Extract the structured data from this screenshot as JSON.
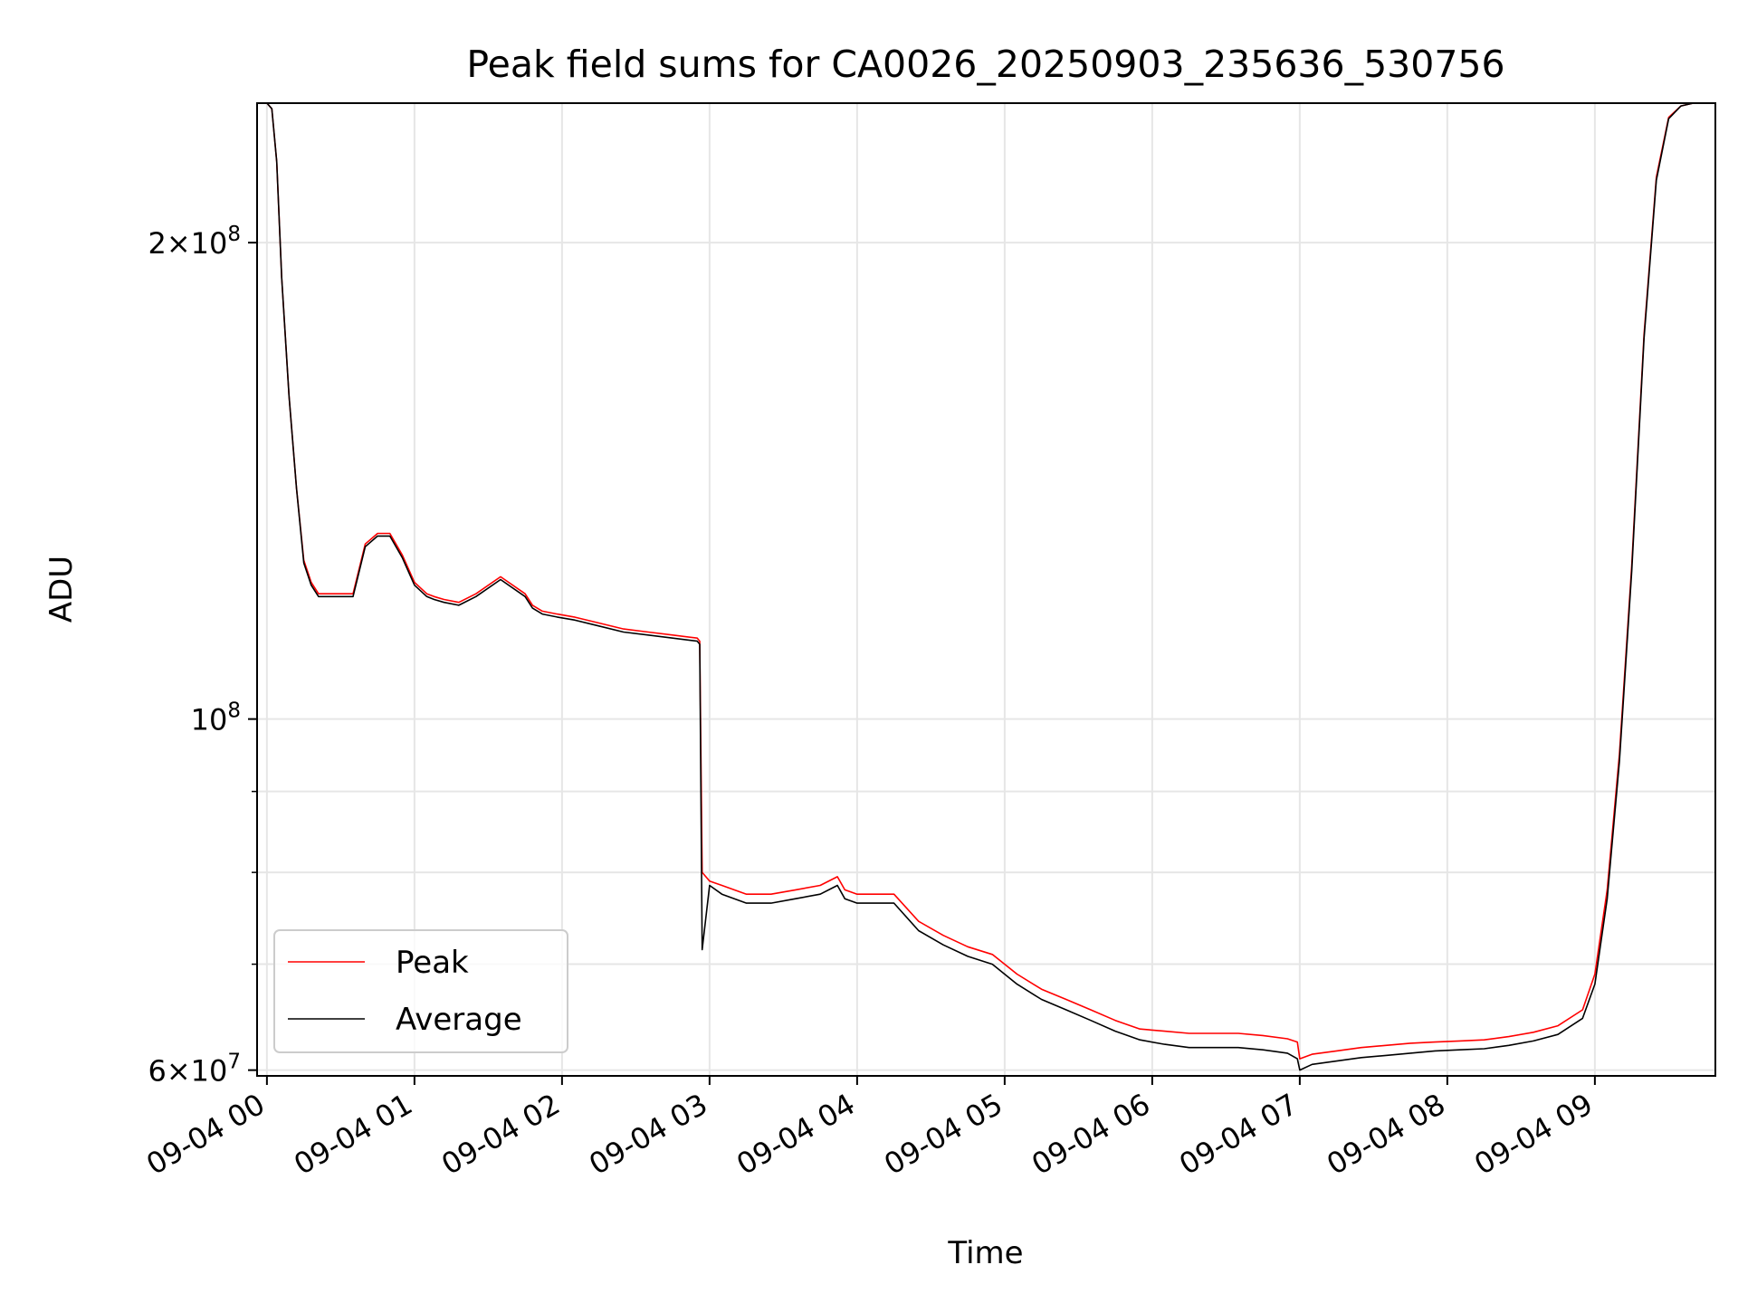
{
  "chart_data": {
    "type": "line",
    "title": "Peak field sums for CA0026_20250903_235636_530756",
    "xlabel": "Time",
    "ylabel": "ADU",
    "yscale": "log",
    "xlim": [
      "09-03 23:56",
      "09-04 09:49"
    ],
    "ylim": [
      59500000,
      245000000
    ],
    "x_ticks": [
      "09-04 00",
      "09-04 01",
      "09-04 02",
      "09-04 03",
      "09-04 04",
      "09-04 05",
      "09-04 06",
      "09-04 07",
      "09-04 08",
      "09-04 09"
    ],
    "y_ticks": [
      {
        "value": 200000000,
        "mantissa": "2",
        "exponent": "8"
      },
      {
        "value": 100000000,
        "mantissa": "",
        "exponent": "8"
      },
      {
        "value": 60000000,
        "mantissa": "6",
        "exponent": "7"
      }
    ],
    "grid": true,
    "legend_position": "lower-left",
    "series": [
      {
        "name": "Peak",
        "color": "#ff0000",
        "x": [
          "09-03 23:56",
          "09-04 00:00",
          "00:02",
          "00:04",
          "00:06",
          "00:09",
          "00:12",
          "00:15",
          "00:18",
          "00:21",
          "00:25",
          "00:30",
          "00:35",
          "00:40",
          "00:45",
          "00:50",
          "00:55",
          "01:00",
          "01:05",
          "01:08",
          "01:12",
          "01:18",
          "01:25",
          "01:35",
          "01:45",
          "01:48",
          "01:52",
          "01:58",
          "02:05",
          "02:15",
          "02:25",
          "02:35",
          "02:45",
          "02:55",
          "02:56",
          "02:57",
          "03:00",
          "03:05",
          "03:15",
          "03:25",
          "03:35",
          "03:45",
          "03:52",
          "03:55",
          "04:00",
          "04:08",
          "04:15",
          "04:25",
          "04:35",
          "04:45",
          "04:55",
          "05:05",
          "05:15",
          "05:25",
          "05:35",
          "05:45",
          "05:55",
          "06:05",
          "06:15",
          "06:25",
          "06:35",
          "06:45",
          "06:55",
          "06:59",
          "07:00",
          "07:05",
          "07:15",
          "07:25",
          "07:35",
          "07:45",
          "07:55",
          "08:05",
          "08:15",
          "08:25",
          "08:35",
          "08:45",
          "08:55",
          "09:00",
          "09:05",
          "09:10",
          "09:15",
          "09:20",
          "09:25",
          "09:30",
          "09:35",
          "09:40",
          "09:45",
          "09:49"
        ],
        "y": [
          245000000,
          245000000,
          243000000,
          225000000,
          190000000,
          160000000,
          140000000,
          126000000,
          122000000,
          120000000,
          120000000,
          120000000,
          120000000,
          129000000,
          131000000,
          131000000,
          127000000,
          122000000,
          120000000,
          119500000,
          119000000,
          118500000,
          120000000,
          123000000,
          120000000,
          118000000,
          117000000,
          116500000,
          116000000,
          115000000,
          114000000,
          113500000,
          113000000,
          112500000,
          112000000,
          80000000,
          79000000,
          78500000,
          77500000,
          77500000,
          78000000,
          78500000,
          79500000,
          78000000,
          77500000,
          77500000,
          77500000,
          74500000,
          73000000,
          71800000,
          71000000,
          69000000,
          67500000,
          66500000,
          65500000,
          64500000,
          63700000,
          63500000,
          63300000,
          63300000,
          63300000,
          63100000,
          62800000,
          62500000,
          61000000,
          61400000,
          61700000,
          62000000,
          62200000,
          62400000,
          62500000,
          62600000,
          62700000,
          63000000,
          63400000,
          64000000,
          65500000,
          69000000,
          78000000,
          95000000,
          125000000,
          175000000,
          220000000,
          240000000,
          244000000,
          245000000,
          245000000,
          245000000
        ]
      },
      {
        "name": "Average",
        "color": "#000000",
        "x": [
          "09-03 23:56",
          "09-04 00:00",
          "00:02",
          "00:04",
          "00:06",
          "00:09",
          "00:12",
          "00:15",
          "00:18",
          "00:21",
          "00:25",
          "00:30",
          "00:35",
          "00:40",
          "00:45",
          "00:50",
          "00:55",
          "01:00",
          "01:05",
          "01:08",
          "01:12",
          "01:18",
          "01:25",
          "01:35",
          "01:45",
          "01:48",
          "01:52",
          "01:58",
          "02:05",
          "02:15",
          "02:25",
          "02:35",
          "02:45",
          "02:55",
          "02:56",
          "02:57",
          "03:00",
          "03:05",
          "03:15",
          "03:25",
          "03:35",
          "03:45",
          "03:52",
          "03:55",
          "04:00",
          "04:08",
          "04:15",
          "04:25",
          "04:35",
          "04:45",
          "04:55",
          "05:05",
          "05:15",
          "05:25",
          "05:35",
          "05:45",
          "05:55",
          "06:05",
          "06:15",
          "06:25",
          "06:35",
          "06:45",
          "06:55",
          "06:59",
          "07:00",
          "07:05",
          "07:15",
          "07:25",
          "07:35",
          "07:45",
          "07:55",
          "08:05",
          "08:15",
          "08:25",
          "08:35",
          "08:45",
          "08:55",
          "09:00",
          "09:05",
          "09:10",
          "09:15",
          "09:20",
          "09:25",
          "09:30",
          "09:35",
          "09:40",
          "09:45",
          "09:49"
        ],
        "y": [
          245000000,
          245000000,
          243000000,
          225000000,
          190000000,
          160000000,
          140000000,
          125500000,
          121500000,
          119500000,
          119500000,
          119500000,
          119500000,
          128500000,
          130500000,
          130500000,
          126500000,
          121500000,
          119500000,
          119000000,
          118500000,
          118000000,
          119500000,
          122500000,
          119500000,
          117500000,
          116500000,
          116000000,
          115500000,
          114500000,
          113500000,
          113000000,
          112500000,
          112000000,
          111500000,
          71500000,
          78500000,
          77500000,
          76500000,
          76500000,
          77000000,
          77500000,
          78500000,
          77000000,
          76500000,
          76500000,
          76500000,
          73500000,
          72000000,
          70800000,
          70000000,
          68000000,
          66500000,
          65500000,
          64500000,
          63500000,
          62700000,
          62300000,
          62000000,
          62000000,
          62000000,
          61800000,
          61500000,
          61000000,
          60000000,
          60500000,
          60800000,
          61100000,
          61300000,
          61500000,
          61700000,
          61800000,
          61900000,
          62200000,
          62600000,
          63200000,
          64700000,
          68000000,
          77000000,
          94000000,
          124000000,
          174000000,
          219000000,
          239500000,
          244000000,
          245000000,
          245000000,
          245000000
        ]
      }
    ]
  }
}
